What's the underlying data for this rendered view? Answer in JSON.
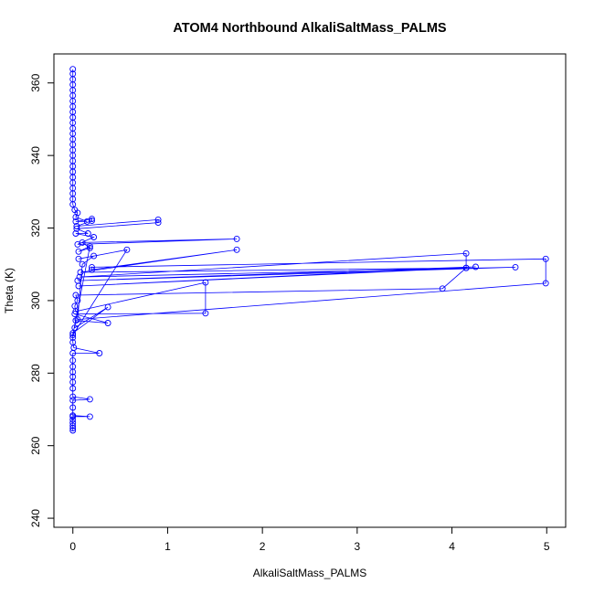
{
  "chart_data": {
    "type": "line",
    "title": "ATOM4 Northbound AlkaliSaltMass_PALMS",
    "xlabel": "AlkaliSaltMass_PALMS",
    "ylabel": "Theta (K)",
    "xlim": [
      -0.2,
      5.2
    ],
    "ylim": [
      237.5,
      368
    ],
    "x_ticks": [
      0,
      1,
      2,
      3,
      4,
      5
    ],
    "y_ticks": [
      240,
      260,
      280,
      300,
      320,
      340,
      360
    ],
    "grid": false,
    "color": "#0000ff",
    "series_style": "lines with open circle markers",
    "series": [
      {
        "values": [
          [
            0.0,
            264.2
          ],
          [
            0.0,
            264.8
          ],
          [
            0.0,
            265.5
          ],
          [
            0.0,
            266.3
          ],
          [
            0.0,
            267.2
          ],
          [
            0.0,
            268.0
          ],
          [
            0.18,
            268.0
          ],
          [
            0.0,
            268.3
          ],
          [
            0.0,
            270.5
          ],
          [
            0.0,
            272.5
          ],
          [
            0.18,
            272.8
          ],
          [
            0.0,
            273.5
          ],
          [
            0.0,
            275.8
          ],
          [
            0.0,
            277.5
          ],
          [
            0.0,
            279.0
          ],
          [
            0.0,
            280.3
          ],
          [
            0.0,
            281.8
          ],
          [
            0.0,
            283.5
          ],
          [
            0.0,
            285.5
          ],
          [
            0.28,
            285.5
          ],
          [
            0.01,
            287.0
          ],
          [
            0.0,
            288.5
          ],
          [
            0.0,
            289.8
          ],
          [
            0.0,
            291.0
          ],
          [
            0.37,
            298.2
          ],
          [
            0.02,
            292.5
          ],
          [
            0.03,
            294.5
          ],
          [
            0.37,
            293.8
          ],
          [
            0.02,
            296.3
          ],
          [
            1.4,
            296.5
          ],
          [
            1.4,
            305.0
          ],
          [
            0.03,
            297.0
          ],
          [
            0.02,
            298.5
          ],
          [
            0.05,
            300.0
          ],
          [
            0.03,
            301.5
          ],
          [
            3.9,
            303.3
          ],
          [
            4.15,
            309.0
          ],
          [
            0.06,
            304.0
          ],
          [
            4.25,
            309.3
          ],
          [
            0.05,
            305.5
          ],
          [
            4.67,
            309.2
          ],
          [
            0.07,
            306.5
          ],
          [
            4.15,
            313.0
          ],
          [
            4.15,
            309.0
          ],
          [
            0.08,
            307.8
          ],
          [
            1.73,
            314.0
          ],
          [
            0.2,
            308.5
          ],
          [
            0.2,
            309.2
          ],
          [
            4.99,
            311.5
          ],
          [
            4.99,
            304.8
          ],
          [
            0.05,
            294.8
          ],
          [
            0.1,
            310.0
          ],
          [
            0.22,
            312.3
          ],
          [
            0.06,
            311.5
          ],
          [
            0.57,
            314.0
          ],
          [
            0.0,
            290.5
          ],
          [
            0.18,
            315.0
          ],
          [
            0.06,
            313.5
          ],
          [
            0.18,
            314.5
          ],
          [
            0.1,
            316.0
          ],
          [
            1.73,
            317.0
          ],
          [
            0.05,
            315.5
          ],
          [
            0.22,
            317.5
          ],
          [
            0.03,
            318.5
          ],
          [
            0.16,
            318.5
          ],
          [
            0.04,
            319.8
          ],
          [
            0.9,
            321.5
          ],
          [
            0.9,
            322.3
          ],
          [
            0.04,
            320.5
          ],
          [
            0.2,
            322.0
          ],
          [
            0.2,
            322.5
          ],
          [
            0.03,
            321.8
          ],
          [
            0.15,
            321.8
          ],
          [
            0.03,
            323.0
          ],
          [
            0.05,
            324.2
          ],
          [
            0.02,
            325.0
          ],
          [
            0.0,
            326.5
          ],
          [
            0.0,
            328.0
          ],
          [
            0.0,
            329.5
          ],
          [
            0.0,
            331.0
          ],
          [
            0.0,
            332.5
          ],
          [
            0.0,
            334.0
          ],
          [
            0.0,
            335.5
          ],
          [
            0.0,
            337.0
          ],
          [
            0.0,
            338.5
          ],
          [
            0.0,
            340.0
          ],
          [
            0.0,
            341.5
          ],
          [
            0.0,
            343.0
          ],
          [
            0.0,
            344.5
          ],
          [
            0.0,
            346.0
          ],
          [
            0.0,
            347.5
          ],
          [
            0.0,
            349.0
          ],
          [
            0.0,
            350.5
          ],
          [
            0.0,
            352.0
          ],
          [
            0.0,
            353.5
          ],
          [
            0.0,
            355.0
          ],
          [
            0.0,
            356.5
          ],
          [
            0.0,
            358.0
          ],
          [
            0.0,
            359.5
          ],
          [
            0.0,
            361.0
          ],
          [
            0.0,
            362.5
          ],
          [
            0.0,
            363.8
          ]
        ]
      }
    ]
  }
}
